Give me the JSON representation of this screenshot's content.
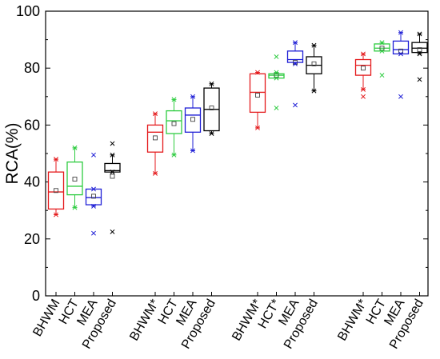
{
  "chart_data": {
    "type": "box",
    "ylabel": "RCA(%)",
    "xlabel": "",
    "ylim": [
      0,
      100
    ],
    "yticks": [
      0,
      20,
      40,
      60,
      80,
      100
    ],
    "grid": false,
    "legend": "none",
    "groups": [
      {
        "boxes": [
          {
            "label": "BHWM",
            "color": "#e41a1c",
            "whisker_low": 28.5,
            "q1": 30.5,
            "median": 36.5,
            "q3": 43.5,
            "whisker_high": 48,
            "mean": 37,
            "outliers": []
          },
          {
            "label": "HCT",
            "color": "#2ecc40",
            "whisker_low": 31,
            "q1": 35.5,
            "median": 38.5,
            "q3": 47,
            "whisker_high": 52,
            "mean": 41,
            "outliers": []
          },
          {
            "label": "MEA",
            "color": "#1f1fd6",
            "whisker_low": 31.5,
            "q1": 32,
            "median": 34.5,
            "q3": 37.5,
            "whisker_high": 37.5,
            "mean": 35,
            "outliers": [
              22,
              49.5
            ]
          },
          {
            "label": "Proposed",
            "color": "#000000",
            "whisker_low": 43.5,
            "q1": 43.5,
            "median": 44,
            "q3": 46.5,
            "whisker_high": 49.5,
            "mean": 42,
            "outliers": [
              22.5,
              53.5
            ]
          }
        ]
      },
      {
        "boxes": [
          {
            "label": "BHWM*",
            "color": "#e41a1c",
            "whisker_low": 43,
            "q1": 50.5,
            "median": 57.5,
            "q3": 60,
            "whisker_high": 64,
            "mean": 55.5,
            "outliers": []
          },
          {
            "label": "HCT",
            "color": "#2ecc40",
            "whisker_low": 49.5,
            "q1": 57,
            "median": 61.5,
            "q3": 65,
            "whisker_high": 69,
            "mean": 60.5,
            "outliers": []
          },
          {
            "label": "MEA",
            "color": "#1f1fd6",
            "whisker_low": 51,
            "q1": 57.5,
            "median": 63.5,
            "q3": 66,
            "whisker_high": 70,
            "mean": 62,
            "outliers": []
          },
          {
            "label": "Proposed",
            "color": "#000000",
            "whisker_low": 57,
            "q1": 58,
            "median": 65.5,
            "q3": 73,
            "whisker_high": 74.5,
            "mean": 66,
            "outliers": []
          }
        ]
      },
      {
        "boxes": [
          {
            "label": "BHWM*",
            "color": "#e41a1c",
            "whisker_low": 59,
            "q1": 64.5,
            "median": 71.5,
            "q3": 78,
            "whisker_high": 78.5,
            "mean": 70.5,
            "outliers": []
          },
          {
            "label": "HCT*",
            "color": "#2ecc40",
            "whisker_low": 76.5,
            "q1": 76.5,
            "median": 77.5,
            "q3": 78,
            "whisker_high": 78.5,
            "mean": 77.5,
            "outliers": [
              66,
              84
            ]
          },
          {
            "label": "MEA",
            "color": "#1f1fd6",
            "whisker_low": 81.5,
            "q1": 82,
            "median": 83,
            "q3": 86,
            "whisker_high": 89,
            "mean": 82,
            "outliers": [
              67
            ]
          },
          {
            "label": "Proposed",
            "color": "#000000",
            "whisker_low": 72,
            "q1": 78,
            "median": 81,
            "q3": 84,
            "whisker_high": 88,
            "mean": 81.5,
            "outliers": []
          }
        ]
      },
      {
        "boxes": [
          {
            "label": "BHWM*",
            "color": "#e41a1c",
            "whisker_low": 72.5,
            "q1": 77.5,
            "median": 81,
            "q3": 83,
            "whisker_high": 85,
            "mean": 80,
            "outliers": [
              70
            ]
          },
          {
            "label": "HCT",
            "color": "#2ecc40",
            "whisker_low": 86,
            "q1": 86,
            "median": 87,
            "q3": 88.5,
            "whisker_high": 89,
            "mean": 87,
            "outliers": [
              77.5
            ]
          },
          {
            "label": "MEA",
            "color": "#1f1fd6",
            "whisker_low": 85,
            "q1": 85,
            "median": 86.5,
            "q3": 89.5,
            "whisker_high": 92.5,
            "mean": 86,
            "outliers": [
              70
            ]
          },
          {
            "label": "Proposed",
            "color": "#000000",
            "whisker_low": 85,
            "q1": 85.5,
            "median": 87,
            "q3": 89,
            "whisker_high": 92,
            "mean": 86.5,
            "outliers": [
              76
            ]
          }
        ]
      }
    ]
  }
}
